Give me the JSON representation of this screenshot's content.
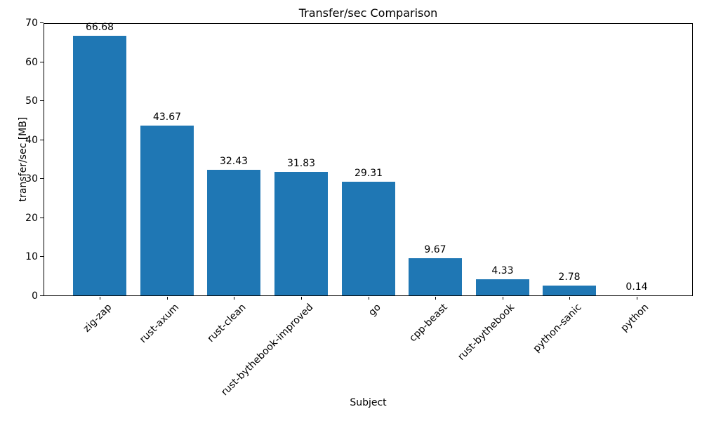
{
  "chart_data": {
    "type": "bar",
    "title": "Transfer/sec Comparison",
    "xlabel": "Subject",
    "ylabel": "transfer/sec [MB]",
    "categories": [
      "zig-zap",
      "rust-axum",
      "rust-clean",
      "rust-bythebook-improved",
      "go",
      "cpp-beast",
      "rust-bythebook",
      "python-sanic",
      "python"
    ],
    "values": [
      66.68,
      43.67,
      32.43,
      31.83,
      29.31,
      9.67,
      4.33,
      2.78,
      0.14
    ],
    "bar_value_labels": [
      "66.68",
      "43.67",
      "32.43",
      "31.83",
      "29.31",
      "9.67",
      "4.33",
      "2.78",
      "0.14"
    ],
    "ylim": [
      0,
      70
    ],
    "yticks": [
      0,
      10,
      20,
      30,
      40,
      50,
      60,
      70
    ],
    "bar_color": "#1f77b4",
    "grid": false,
    "legend": "none",
    "x_tick_rotation_deg": 45
  }
}
